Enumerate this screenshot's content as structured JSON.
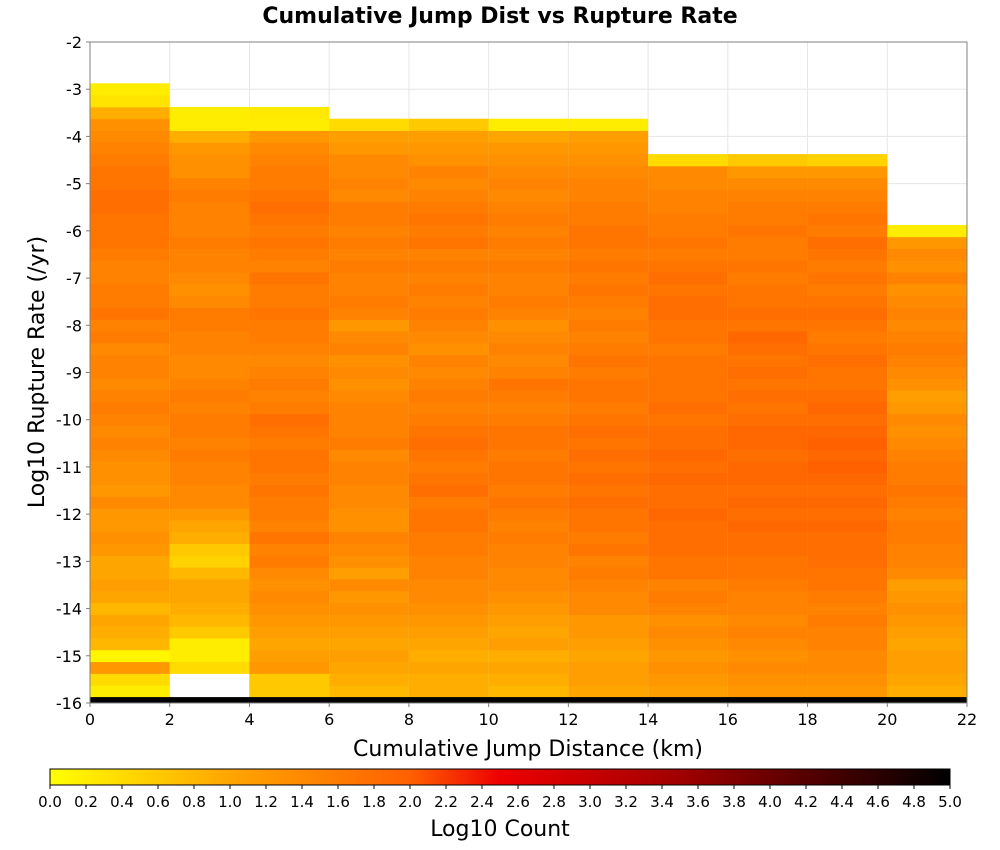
{
  "chart_data": {
    "type": "heatmap",
    "title": "Cumulative Jump Dist vs Rupture Rate",
    "xlabel": "Cumulative Jump Distance (km)",
    "ylabel": "Log10 Rupture Rate (/yr)",
    "xlim": [
      0,
      22
    ],
    "ylim": [
      -16,
      -2
    ],
    "x_ticks": [
      0,
      2,
      4,
      6,
      8,
      10,
      12,
      14,
      16,
      18,
      20,
      22
    ],
    "y_ticks": [
      -2,
      -3,
      -4,
      -5,
      -6,
      -7,
      -8,
      -9,
      -10,
      -11,
      -12,
      -13,
      -14,
      -15,
      -16
    ],
    "x_bin_width": 2,
    "y_bin_height": 0.25,
    "grid": true,
    "colorscale": [
      "#ffff00",
      "#ffa500",
      "#ff6000",
      "#ee0000",
      "#a00000",
      "#000000"
    ],
    "colorbar": {
      "label": "Log10 Count",
      "range": [
        0,
        5
      ],
      "ticks": [
        "0.0",
        "0.2",
        "0.4",
        "0.6",
        "0.8",
        "1.0",
        "1.2",
        "1.4",
        "1.6",
        "1.8",
        "2.0",
        "2.2",
        "2.4",
        "2.6",
        "2.8",
        "3.0",
        "3.2",
        "3.4",
        "3.6",
        "3.8",
        "4.0",
        "4.2",
        "4.4",
        "4.6",
        "4.8",
        "5.0"
      ]
    },
    "columns": [
      {
        "x0": 0,
        "bins": [
          {
            "y0": -15.875,
            "values": [
              0.2,
              0.4,
              1.2,
              0.1,
              0.8,
              0.9,
              1.0,
              0.8,
              1.0,
              1.1,
              1.0,
              1.0,
              1.2,
              1.3,
              1.2,
              1.2,
              1.4,
              1.2,
              1.3,
              1.3,
              1.4,
              1.5,
              1.4,
              1.5,
              1.6,
              1.5,
              1.4,
              1.5,
              1.5,
              1.4,
              1.6,
              1.5,
              1.7,
              1.6,
              1.6,
              1.5,
              1.5,
              1.6,
              1.7,
              1.7,
              1.7,
              1.8,
              1.8,
              1.7,
              1.7,
              1.6,
              1.5,
              1.4,
              1.3,
              0.9,
              0.3,
              0.2
            ]
          }
        ]
      },
      {
        "x0": 2,
        "bins": [
          {
            "y0": -15.375,
            "values": [
              0.4,
              0.2,
              0.2,
              0.6,
              0.8,
              0.9,
              1.0,
              1.0,
              0.8,
              0.5,
              0.6,
              0.9,
              1.0,
              1.2,
              1.4,
              1.4,
              1.5,
              1.5,
              1.6,
              1.5,
              1.6,
              1.6,
              1.5,
              1.6,
              1.5,
              1.4,
              1.4,
              1.5,
              1.5,
              1.6,
              1.6,
              1.4,
              1.3,
              1.4,
              1.5,
              1.5,
              1.6,
              1.5,
              1.5,
              1.5,
              1.6,
              1.5,
              1.3,
              1.3,
              1.2,
              0.9,
              0.2,
              0.2
            ]
          }
        ]
      },
      {
        "x0": 4,
        "bins": [
          {
            "y0": -15.875,
            "values": [
              0.6,
              0.6,
              1.2,
              1.1,
              1.0,
              1.1,
              1.2,
              1.3,
              1.4,
              1.3,
              1.4,
              1.6,
              1.5,
              1.7,
              1.5,
              1.6,
              1.6,
              1.7,
              1.6,
              1.7,
              1.7,
              1.6,
              1.7,
              1.8,
              1.6,
              1.5,
              1.6,
              1.5,
              1.4,
              1.5,
              1.6,
              1.6,
              1.7,
              1.6,
              1.6,
              1.7,
              1.5,
              1.6,
              1.7,
              1.6,
              1.7,
              1.8,
              1.7,
              1.6,
              1.6,
              1.5,
              1.4,
              1.2,
              0.2
            ]
          },
          {
            "y0": -3.625,
            "values": [
              0.25
            ]
          }
        ]
      },
      {
        "x0": 6,
        "bins": [
          {
            "y0": -15.875,
            "values": [
              0.8,
              0.9,
              1.0,
              1.1,
              1.0,
              1.1,
              1.2,
              1.3,
              1.2,
              1.4,
              1.1,
              1.3,
              1.4,
              1.5,
              1.3,
              1.3,
              1.4,
              1.4,
              1.5,
              1.5,
              1.4,
              1.6,
              1.5,
              1.5,
              1.5,
              1.4,
              1.3,
              1.4,
              1.3,
              1.5,
              1.4,
              1.2,
              1.5,
              1.6,
              1.5,
              1.5,
              1.6,
              1.5,
              1.6,
              1.5,
              1.6,
              1.6,
              1.4,
              1.5,
              1.4,
              1.4,
              1.2,
              1.1,
              0.4
            ]
          }
        ]
      },
      {
        "x0": 8,
        "bins": [
          {
            "y0": -15.875,
            "values": [
              0.9,
              0.9,
              1.0,
              0.9,
              1.0,
              1.1,
              1.2,
              1.3,
              1.4,
              1.4,
              1.5,
              1.5,
              1.6,
              1.6,
              1.7,
              1.7,
              1.6,
              1.8,
              1.7,
              1.6,
              1.7,
              1.8,
              1.7,
              1.6,
              1.5,
              1.6,
              1.5,
              1.4,
              1.5,
              1.3,
              1.4,
              1.5,
              1.6,
              1.5,
              1.6,
              1.5,
              1.6,
              1.5,
              1.7,
              1.6,
              1.7,
              1.6,
              1.5,
              1.4,
              1.5,
              1.3,
              1.2,
              1.1,
              0.6
            ]
          }
        ]
      },
      {
        "x0": 10,
        "bins": [
          {
            "y0": -15.875,
            "values": [
              0.8,
              0.9,
              1.0,
              0.9,
              1.1,
              1.0,
              1.1,
              1.2,
              1.3,
              1.4,
              1.4,
              1.5,
              1.5,
              1.6,
              1.5,
              1.6,
              1.7,
              1.6,
              1.7,
              1.7,
              1.6,
              1.7,
              1.7,
              1.6,
              1.5,
              1.6,
              1.7,
              1.5,
              1.4,
              1.5,
              1.4,
              1.3,
              1.5,
              1.6,
              1.5,
              1.5,
              1.6,
              1.5,
              1.6,
              1.5,
              1.6,
              1.5,
              1.4,
              1.5,
              1.4,
              1.3,
              1.2,
              1.0,
              0.2
            ]
          }
        ]
      },
      {
        "x0": 12,
        "bins": [
          {
            "y0": -15.875,
            "values": [
              1.0,
              1.1,
              1.1,
              1.0,
              1.1,
              1.2,
              1.2,
              1.4,
              1.4,
              1.5,
              1.6,
              1.5,
              1.7,
              1.6,
              1.7,
              1.7,
              1.8,
              1.7,
              1.8,
              1.7,
              1.8,
              1.7,
              1.8,
              1.7,
              1.6,
              1.7,
              1.7,
              1.6,
              1.7,
              1.6,
              1.5,
              1.6,
              1.5,
              1.6,
              1.7,
              1.6,
              1.7,
              1.6,
              1.7,
              1.7,
              1.6,
              1.6,
              1.5,
              1.5,
              1.4,
              1.3,
              1.2,
              1.1,
              0.2
            ]
          }
        ]
      },
      {
        "x0": 14,
        "bins": [
          {
            "y0": -15.875,
            "values": [
              1.1,
              1.2,
              1.3,
              1.2,
              1.3,
              1.4,
              1.3,
              1.5,
              1.6,
              1.5,
              1.7,
              1.7,
              1.8,
              1.8,
              1.8,
              1.9,
              1.8,
              1.8,
              1.9,
              1.8,
              1.9,
              1.8,
              1.8,
              1.7,
              1.8,
              1.7,
              1.7,
              1.7,
              1.7,
              1.6,
              1.7,
              1.7,
              1.8,
              1.8,
              1.7,
              1.8,
              1.7,
              1.6,
              1.7,
              1.6,
              1.6,
              1.5,
              1.5,
              1.4,
              1.4,
              0.4
            ]
          }
        ]
      },
      {
        "x0": 16,
        "bins": [
          {
            "y0": -15.875,
            "values": [
              1.2,
              1.3,
              1.4,
              1.3,
              1.4,
              1.5,
              1.4,
              1.5,
              1.5,
              1.6,
              1.7,
              1.7,
              1.8,
              1.8,
              1.9,
              1.8,
              1.9,
              1.8,
              1.9,
              1.9,
              1.8,
              1.9,
              1.9,
              1.8,
              1.7,
              1.8,
              1.7,
              1.8,
              1.7,
              1.8,
              1.9,
              1.7,
              1.8,
              1.7,
              1.7,
              1.6,
              1.7,
              1.6,
              1.6,
              1.7,
              1.6,
              1.6,
              1.5,
              1.4,
              1.2,
              0.6
            ]
          }
        ]
      },
      {
        "x0": 18,
        "bins": [
          {
            "y0": -15.875,
            "values": [
              1.2,
              1.3,
              1.4,
              1.4,
              1.5,
              1.5,
              1.6,
              1.5,
              1.6,
              1.7,
              1.7,
              1.8,
              1.8,
              1.8,
              1.9,
              1.8,
              1.9,
              1.8,
              1.9,
              2.0,
              1.9,
              2.0,
              1.9,
              1.8,
              1.9,
              1.8,
              1.7,
              1.7,
              1.8,
              1.7,
              1.6,
              1.7,
              1.8,
              1.7,
              1.6,
              1.7,
              1.6,
              1.7,
              1.8,
              1.6,
              1.7,
              1.6,
              1.5,
              1.4,
              1.2,
              0.5
            ]
          }
        ]
      },
      {
        "x0": 20,
        "bins": [
          {
            "y0": -15.875,
            "values": [
              0.9,
              1.0,
              1.1,
              1.1,
              1.0,
              1.1,
              1.2,
              1.3,
              1.2,
              1.1,
              1.4,
              1.5,
              1.5,
              1.6,
              1.6,
              1.5,
              1.6,
              1.7,
              1.6,
              1.6,
              1.5,
              1.4,
              1.3,
              1.4,
              1.2,
              1.1,
              1.3,
              1.4,
              1.5,
              1.6,
              1.5,
              1.4,
              1.5,
              1.4,
              1.3,
              1.5,
              1.3,
              1.4,
              1.2,
              0.2
            ]
          }
        ]
      }
    ],
    "bottom_row": {
      "y0": -16,
      "y1": -15.875,
      "value": 5.0,
      "x_range": [
        0,
        22
      ]
    }
  }
}
